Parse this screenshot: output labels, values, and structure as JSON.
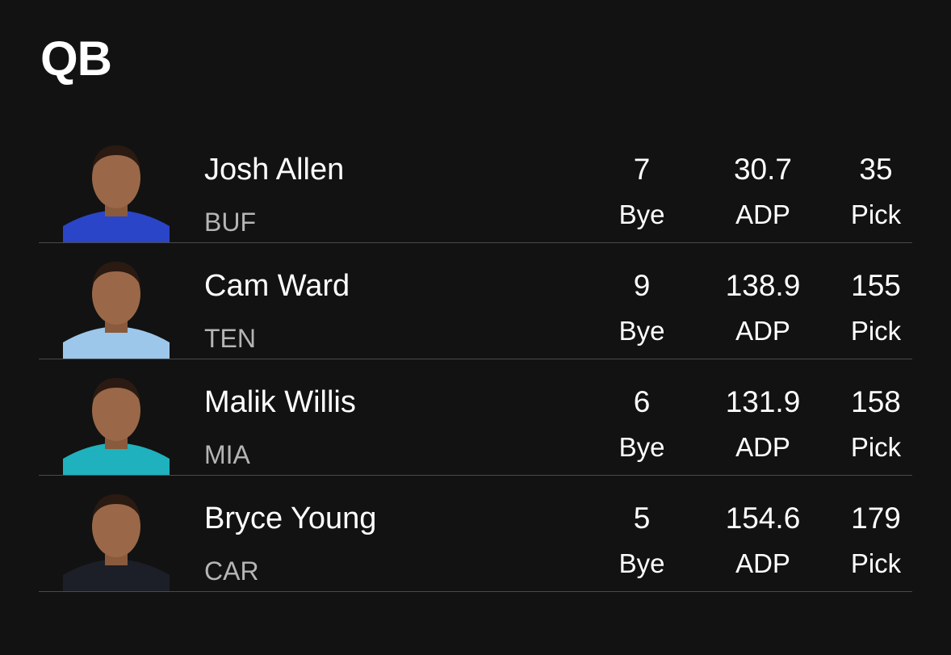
{
  "header": {
    "title": "QB"
  },
  "labels": {
    "bye": "Bye",
    "adp": "ADP",
    "pick": "Pick"
  },
  "players": [
    {
      "name": "Josh Allen",
      "team": "BUF",
      "bye": 7,
      "adp": 30.7,
      "pick": 35
    },
    {
      "name": "Cam Ward",
      "team": "TEN",
      "bye": 9,
      "adp": 138.9,
      "pick": 155
    },
    {
      "name": "Malik Willis",
      "team": "MIA",
      "bye": 6,
      "adp": 131.9,
      "pick": 158
    },
    {
      "name": "Bryce Young",
      "team": "CAR",
      "bye": 5,
      "adp": 154.6,
      "pick": 179
    }
  ]
}
